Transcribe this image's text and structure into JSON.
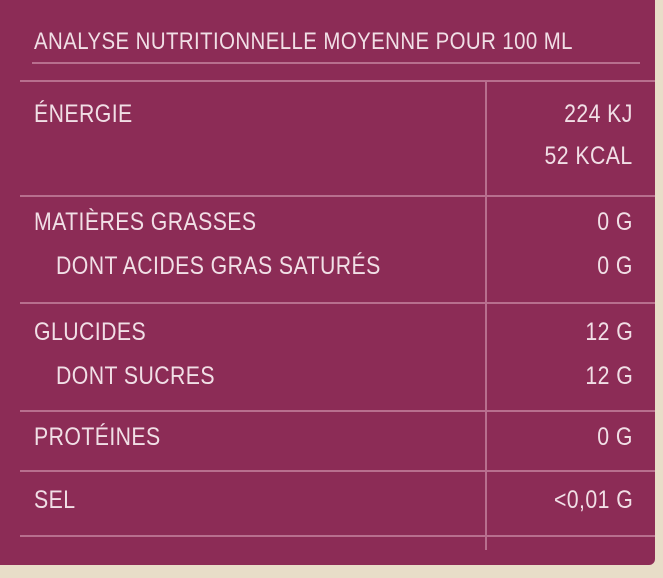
{
  "header": {
    "title": "ANALYSE NUTRITIONNELLE MOYENNE POUR 100 ML"
  },
  "table": {
    "rows": [
      {
        "label": "ÉNERGIE",
        "values": [
          "224 KJ",
          "52 KCAL"
        ]
      },
      {
        "label": "MATIÈRES GRASSES",
        "values": [
          "0 G"
        ]
      },
      {
        "label": "DONT ACIDES GRAS SATURÉS",
        "values": [
          "0 G"
        ]
      },
      {
        "label": "GLUCIDES",
        "values": [
          "12 G"
        ]
      },
      {
        "label": "DONT SUCRES",
        "values": [
          "12 G"
        ]
      },
      {
        "label": "PROTÉINES",
        "values": [
          "0 G"
        ]
      },
      {
        "label": "SEL",
        "values": [
          "<0,01 G"
        ]
      }
    ]
  }
}
